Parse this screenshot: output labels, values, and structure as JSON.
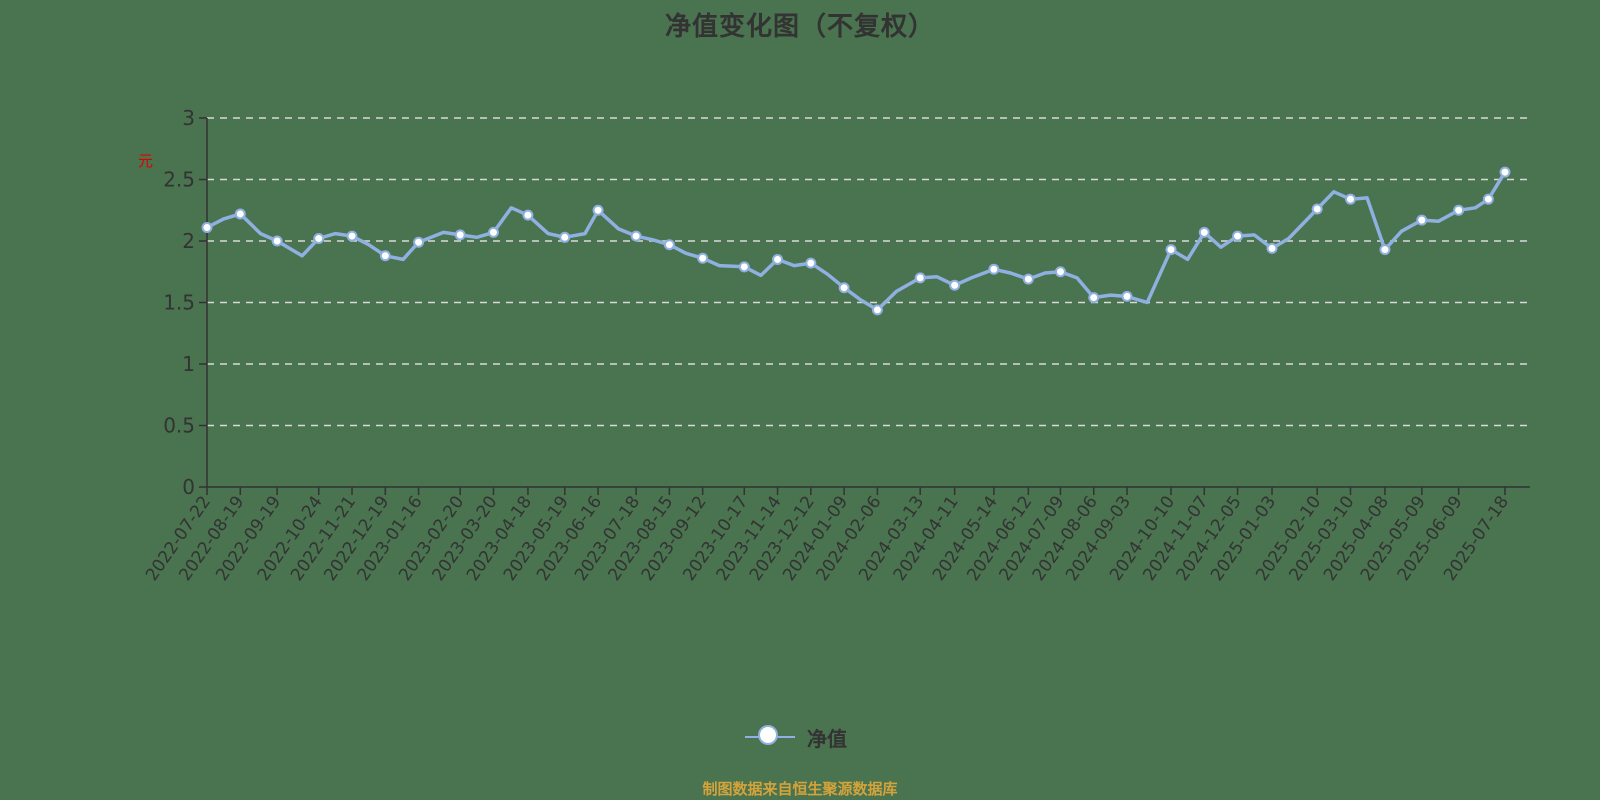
{
  "title": "净值变化图（不复权）",
  "y_unit": "元",
  "legend": {
    "label": "净值"
  },
  "source": "制图数据来自恒生聚源数据库",
  "colors": {
    "background": "#4a7350",
    "line": "#8fb0e0",
    "marker_fill": "#ffffff",
    "grid": "#d9d9d9",
    "axis": "#333333",
    "source_text": "#d4a33a",
    "unit_text": "#e00000"
  },
  "chart_data": {
    "type": "line",
    "title": "净值变化图（不复权）",
    "xlabel": "",
    "ylabel": "元",
    "ylim": [
      0,
      3
    ],
    "yticks": [
      0,
      0.5,
      1,
      1.5,
      2,
      2.5,
      3
    ],
    "grid": true,
    "legend_position": "bottom",
    "x_tick_labels": [
      "2022-07-22",
      "2022-08-19",
      "2022-09-19",
      "2022-10-24",
      "2022-11-21",
      "2022-12-19",
      "2023-01-16",
      "2023-02-20",
      "2023-03-20",
      "2023-04-18",
      "2023-05-19",
      "2023-06-16",
      "2023-07-18",
      "2023-08-15",
      "2023-09-12",
      "2023-10-17",
      "2023-11-14",
      "2023-12-12",
      "2024-01-09",
      "2024-02-06",
      "2024-03-13",
      "2024-04-11",
      "2024-05-14",
      "2024-06-12",
      "2024-07-09",
      "2024-08-06",
      "2024-09-03",
      "2024-10-10",
      "2024-11-07",
      "2024-12-05",
      "2025-01-03",
      "2025-02-10",
      "2025-03-10",
      "2025-04-08",
      "2025-05-09",
      "2025-06-09",
      "2025-07-18"
    ],
    "series": [
      {
        "name": "净值",
        "x": [
          "2022-07-22",
          "2022-08-05",
          "2022-08-19",
          "2022-09-05",
          "2022-09-19",
          "2022-10-10",
          "2022-10-24",
          "2022-11-07",
          "2022-11-21",
          "2022-12-05",
          "2022-12-19",
          "2023-01-03",
          "2023-01-16",
          "2023-02-06",
          "2023-02-20",
          "2023-03-06",
          "2023-03-20",
          "2023-04-04",
          "2023-04-18",
          "2023-05-05",
          "2023-05-19",
          "2023-06-05",
          "2023-06-16",
          "2023-07-03",
          "2023-07-18",
          "2023-08-01",
          "2023-08-15",
          "2023-08-29",
          "2023-09-12",
          "2023-09-26",
          "2023-10-17",
          "2023-10-31",
          "2023-11-14",
          "2023-11-28",
          "2023-12-12",
          "2023-12-26",
          "2024-01-09",
          "2024-01-23",
          "2024-02-06",
          "2024-02-22",
          "2024-03-13",
          "2024-03-27",
          "2024-04-11",
          "2024-04-25",
          "2024-05-14",
          "2024-05-28",
          "2024-06-12",
          "2024-06-26",
          "2024-07-09",
          "2024-07-23",
          "2024-08-06",
          "2024-08-20",
          "2024-09-03",
          "2024-09-20",
          "2024-10-10",
          "2024-10-24",
          "2024-11-07",
          "2024-11-21",
          "2024-12-05",
          "2024-12-19",
          "2025-01-03",
          "2025-01-17",
          "2025-02-10",
          "2025-02-24",
          "2025-03-10",
          "2025-03-24",
          "2025-04-08",
          "2025-04-22",
          "2025-05-09",
          "2025-05-23",
          "2025-06-09",
          "2025-06-23",
          "2025-07-04",
          "2025-07-18"
        ],
        "values": [
          2.11,
          2.18,
          2.22,
          2.06,
          2.0,
          1.88,
          2.02,
          2.06,
          2.04,
          1.97,
          1.88,
          1.85,
          1.99,
          2.07,
          2.05,
          2.03,
          2.07,
          2.27,
          2.21,
          2.06,
          2.03,
          2.06,
          2.25,
          2.1,
          2.04,
          2.01,
          1.97,
          1.9,
          1.86,
          1.8,
          1.79,
          1.72,
          1.85,
          1.8,
          1.82,
          1.73,
          1.62,
          1.52,
          1.44,
          1.59,
          1.7,
          1.71,
          1.64,
          1.7,
          1.77,
          1.74,
          1.69,
          1.74,
          1.75,
          1.7,
          1.54,
          1.56,
          1.55,
          1.5,
          1.93,
          1.85,
          2.07,
          1.95,
          2.04,
          2.05,
          1.94,
          2.02,
          2.26,
          2.4,
          2.34,
          2.35,
          1.93,
          2.08,
          2.17,
          2.16,
          2.25,
          2.27,
          2.34,
          2.56
        ]
      }
    ]
  }
}
